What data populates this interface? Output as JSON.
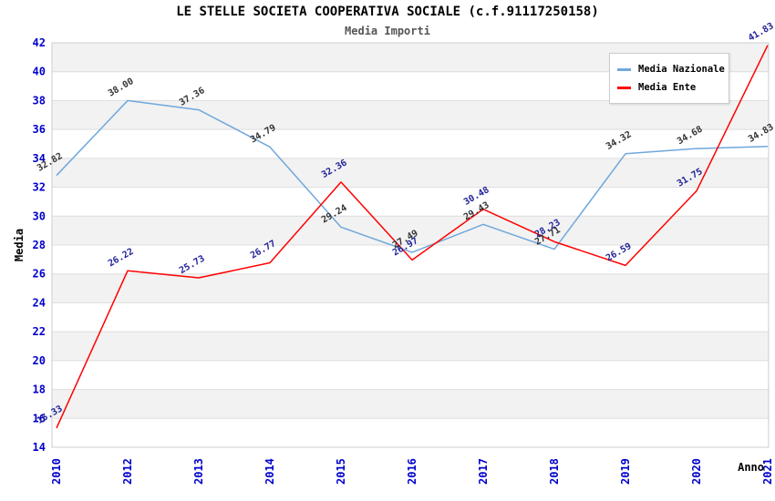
{
  "header": {
    "title": "LE STELLE SOCIETA COOPERATIVA SOCIALE (c.f.91117250158)",
    "subtitle": "Media Importi"
  },
  "chart_data": {
    "type": "line",
    "title": "LE STELLE SOCIETA COOPERATIVA SOCIALE (c.f.91117250158)",
    "subtitle": "Media Importi",
    "xlabel": "Anno",
    "ylabel": "Media",
    "categories": [
      "2010",
      "2012",
      "2013",
      "2014",
      "2015",
      "2016",
      "2017",
      "2018",
      "2019",
      "2020",
      "2021"
    ],
    "series": [
      {
        "name": "Media Nazionale",
        "color": "#6fa8dc",
        "label_color": "#333333",
        "values": [
          32.82,
          38.0,
          37.36,
          34.79,
          29.24,
          27.49,
          29.43,
          27.71,
          34.32,
          34.68,
          34.83
        ]
      },
      {
        "name": "Media Ente",
        "color": "#ff0000",
        "label_color": "#222299",
        "values": [
          15.33,
          26.22,
          25.73,
          26.77,
          32.36,
          26.97,
          30.48,
          28.23,
          26.59,
          31.75,
          41.83
        ]
      }
    ],
    "ylim": [
      14,
      42
    ],
    "ytick_step": 2,
    "grid": true,
    "legend_position": "top-right",
    "colors": {
      "tick_label": "#0000cc",
      "grid_line": "#dddddd",
      "band_fill": "#f2f2f2",
      "plot_border": "#cccccc",
      "axis_title": "#000000"
    }
  }
}
